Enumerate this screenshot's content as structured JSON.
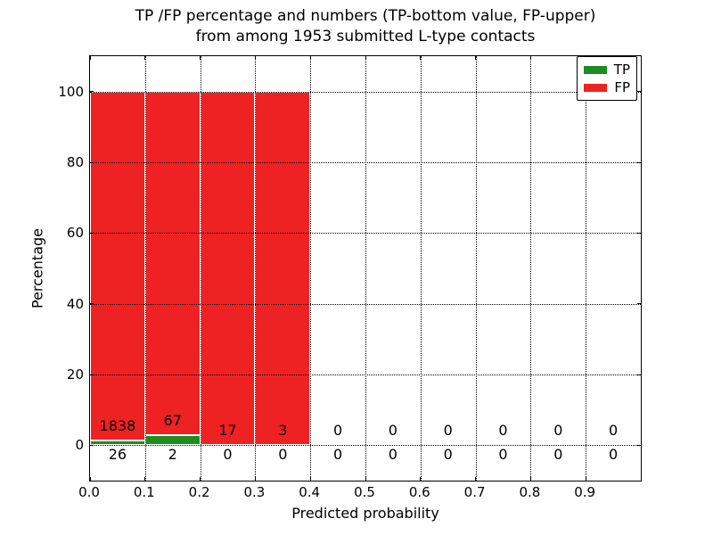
{
  "figure": {
    "title_line1": "TP /FP percentage and numbers (TP-bottom value, FP-upper)",
    "title_line2": "from among 1953 submitted L-type contacts"
  },
  "axes": {
    "xlabel": "Predicted probability",
    "ylabel": "Percentage"
  },
  "legend": {
    "items": [
      {
        "label": "TP",
        "color": "#1e8c1e"
      },
      {
        "label": "FP",
        "color": "#ee2222"
      }
    ]
  },
  "chart_data": {
    "type": "bar",
    "stacked": true,
    "title": "TP /FP percentage and numbers (TP-bottom value, FP-upper) from among 1953 submitted L-type contacts",
    "xlabel": "Predicted probability",
    "ylabel": "Percentage",
    "total_contacts": 1953,
    "xlim": [
      0.0,
      1.0
    ],
    "ylim": [
      -10,
      110
    ],
    "x_tick_values": [
      0.0,
      0.1,
      0.2,
      0.3,
      0.4,
      0.5,
      0.6,
      0.7,
      0.8,
      0.9
    ],
    "x_tick_labels": [
      "0.0",
      "0.1",
      "0.2",
      "0.3",
      "0.4",
      "0.5",
      "0.6",
      "0.7",
      "0.8",
      "0.9"
    ],
    "y_tick_values": [
      0,
      20,
      40,
      60,
      80,
      100
    ],
    "y_tick_labels": [
      "0",
      "20",
      "40",
      "60",
      "80",
      "100"
    ],
    "grid": {
      "style": "dotted",
      "color": "#000000",
      "above_bars": true
    },
    "legend_position": "upper-right",
    "bin_width": 0.1,
    "bin_starts": [
      0.0,
      0.1,
      0.2,
      0.3,
      0.4,
      0.5,
      0.6,
      0.7,
      0.8,
      0.9
    ],
    "series": [
      {
        "name": "TP",
        "color": "#1e8c1e",
        "counts": [
          26,
          2,
          0,
          0,
          0,
          0,
          0,
          0,
          0,
          0
        ],
        "pct": [
          1.3948,
          2.8986,
          0,
          0,
          0,
          0,
          0,
          0,
          0,
          0
        ]
      },
      {
        "name": "FP",
        "color": "#ee2222",
        "counts": [
          1838,
          67,
          17,
          3,
          0,
          0,
          0,
          0,
          0,
          0
        ],
        "pct": [
          98.6052,
          97.1014,
          100,
          100,
          0,
          0,
          0,
          0,
          0,
          0
        ]
      }
    ],
    "bars_drawn_for_bins": [
      0,
      1,
      2,
      3
    ],
    "bar_edge_color": "#ffffff",
    "tp_label_row_pct": -2.8,
    "fp_label_offset_pct": 4.1
  }
}
